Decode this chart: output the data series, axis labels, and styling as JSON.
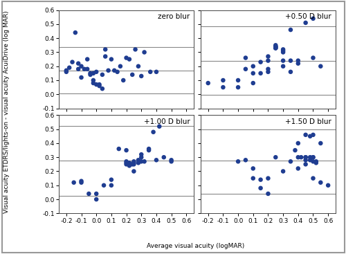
{
  "panels": [
    {
      "label": "zero blur",
      "mean_diff": 0.17,
      "upper_loa": 0.335,
      "lower_loa": 0.005,
      "x": [
        -0.2,
        -0.2,
        -0.18,
        -0.16,
        -0.14,
        -0.12,
        -0.12,
        -0.1,
        -0.1,
        -0.08,
        -0.06,
        -0.06,
        -0.04,
        -0.04,
        -0.02,
        -0.02,
        -0.02,
        0.0,
        0.0,
        0.02,
        0.02,
        0.04,
        0.04,
        0.06,
        0.06,
        0.08,
        0.1,
        0.12,
        0.14,
        0.16,
        0.18,
        0.2,
        0.22,
        0.24,
        0.26,
        0.28,
        0.3,
        0.32,
        0.36,
        0.4
      ],
      "y": [
        0.16,
        0.17,
        0.19,
        0.23,
        0.44,
        0.18,
        0.22,
        0.12,
        0.2,
        0.18,
        0.18,
        0.25,
        0.15,
        0.14,
        0.1,
        0.08,
        0.15,
        0.16,
        0.07,
        0.07,
        0.06,
        0.04,
        0.14,
        0.27,
        0.32,
        0.17,
        0.25,
        0.17,
        0.16,
        0.2,
        0.1,
        0.26,
        0.25,
        0.14,
        0.32,
        0.2,
        0.13,
        0.3,
        0.16,
        0.16
      ]
    },
    {
      "label": "+0.50 D blur",
      "mean_diff": 0.24,
      "upper_loa": 0.485,
      "lower_loa": -0.005,
      "x": [
        -0.2,
        -0.1,
        -0.1,
        0.0,
        0.0,
        0.05,
        0.05,
        0.1,
        0.1,
        0.1,
        0.15,
        0.15,
        0.2,
        0.2,
        0.2,
        0.2,
        0.25,
        0.25,
        0.25,
        0.25,
        0.25,
        0.25,
        0.25,
        0.3,
        0.3,
        0.3,
        0.3,
        0.3,
        0.35,
        0.35,
        0.35,
        0.4,
        0.4,
        0.45,
        0.5,
        0.5,
        0.55
      ],
      "y": [
        0.08,
        0.05,
        0.1,
        0.05,
        0.1,
        0.26,
        0.18,
        0.08,
        0.15,
        0.2,
        0.15,
        0.23,
        0.16,
        0.24,
        0.18,
        0.27,
        0.33,
        0.33,
        0.34,
        0.34,
        0.34,
        0.35,
        0.33,
        0.3,
        0.31,
        0.24,
        0.2,
        0.32,
        0.16,
        0.24,
        0.46,
        0.24,
        0.22,
        0.51,
        0.54,
        0.26,
        0.2
      ]
    },
    {
      "label": "+1.00 D blur",
      "mean_diff": 0.275,
      "upper_loa": 0.525,
      "lower_loa": 0.025,
      "x": [
        -0.15,
        -0.1,
        -0.1,
        -0.05,
        0.0,
        0.0,
        0.05,
        0.1,
        0.1,
        0.15,
        0.2,
        0.2,
        0.2,
        0.2,
        0.22,
        0.22,
        0.24,
        0.25,
        0.25,
        0.25,
        0.25,
        0.28,
        0.28,
        0.3,
        0.3,
        0.3,
        0.32,
        0.35,
        0.35,
        0.38,
        0.4,
        0.42,
        0.45,
        0.5,
        0.5
      ],
      "y": [
        0.12,
        0.12,
        0.13,
        0.04,
        0.04,
        0.0,
        0.1,
        0.14,
        0.1,
        0.36,
        0.27,
        0.26,
        0.25,
        0.35,
        0.24,
        0.26,
        0.25,
        0.27,
        0.26,
        0.25,
        0.2,
        0.26,
        0.28,
        0.3,
        0.32,
        0.27,
        0.27,
        0.35,
        0.36,
        0.48,
        0.28,
        0.52,
        0.3,
        0.28,
        0.27
      ]
    },
    {
      "label": "+1.50 D blur",
      "mean_diff": 0.275,
      "upper_loa": 0.5,
      "lower_loa": 0.04,
      "x": [
        0.0,
        0.05,
        0.1,
        0.1,
        0.15,
        0.15,
        0.2,
        0.2,
        0.25,
        0.3,
        0.35,
        0.38,
        0.4,
        0.4,
        0.4,
        0.42,
        0.45,
        0.45,
        0.45,
        0.45,
        0.45,
        0.48,
        0.48,
        0.48,
        0.5,
        0.5,
        0.5,
        0.5,
        0.5,
        0.52,
        0.52,
        0.55,
        0.55,
        0.6
      ],
      "y": [
        0.27,
        0.28,
        0.15,
        0.22,
        0.08,
        0.14,
        0.04,
        0.15,
        0.3,
        0.2,
        0.27,
        0.35,
        0.22,
        0.3,
        0.4,
        0.3,
        0.46,
        0.3,
        0.3,
        0.28,
        0.25,
        0.45,
        0.3,
        0.28,
        0.46,
        0.3,
        0.3,
        0.27,
        0.15,
        0.27,
        0.26,
        0.4,
        0.12,
        0.1
      ]
    }
  ],
  "xlim": [
    -0.25,
    0.65
  ],
  "ylim": [
    -0.1,
    0.6
  ],
  "xticks": [
    -0.2,
    -0.1,
    0.0,
    0.1,
    0.2,
    0.3,
    0.4,
    0.5,
    0.6
  ],
  "yticks": [
    -0.1,
    0.0,
    0.1,
    0.2,
    0.3,
    0.4,
    0.5,
    0.6
  ],
  "xlabel": "Average visual acuity (logMAR)",
  "ylabel": "Visual acuity ETDRS/lights-on - visual acuity AcuiDrive (log MAR)",
  "dot_color": "#1f3d91",
  "dot_size": 22,
  "line_color": "#888888",
  "line_width": 0.8,
  "tick_fontsize": 6.5,
  "label_fontsize": 6.5,
  "panel_label_fontsize": 7.5,
  "fig_border_color": "#aaaaaa"
}
